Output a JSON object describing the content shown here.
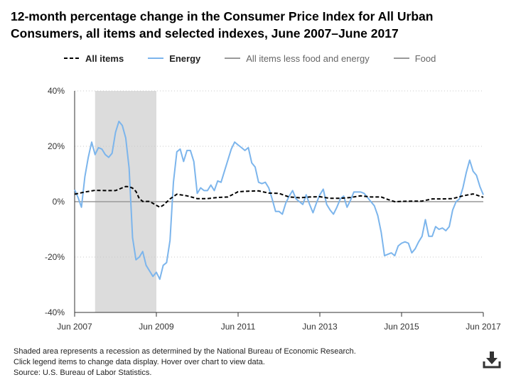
{
  "title": "12-month percentage change in the Consumer Price Index for All Urban Consumers, all items and selected indexes, June 2007–June 2017",
  "legend": {
    "all_items": "All items",
    "energy": "Energy",
    "core": "All items less food and energy",
    "food": "Food"
  },
  "notes": {
    "line1": "Shaded area represents a recession as determined by the National Bureau of Economic Research.",
    "line2": "Click legend items to change data display. Hover over chart to view data.",
    "line3": "Source: U.S. Bureau of Labor Statistics."
  },
  "icons": {
    "download": "download-icon"
  },
  "colors": {
    "energy": "#7cb5ec",
    "all_items": "#000000",
    "recession": "#dcdcdc",
    "zero_line": "#999999",
    "legend_gray": "#999999"
  },
  "chart_data": {
    "type": "line",
    "x_start": "2007-06",
    "x_end": "2017-06",
    "xlim": [
      0,
      120
    ],
    "ylim": [
      -40,
      40
    ],
    "y_ticks": [
      {
        "value": 40,
        "label": "40%"
      },
      {
        "value": 20,
        "label": "20%"
      },
      {
        "value": 0,
        "label": "0%"
      },
      {
        "value": -20,
        "label": "-20%"
      },
      {
        "value": -40,
        "label": "-40%"
      }
    ],
    "x_ticks": [
      {
        "value": 0,
        "label": "Jun 2007"
      },
      {
        "value": 24,
        "label": "Jun 2009"
      },
      {
        "value": 48,
        "label": "Jun 2011"
      },
      {
        "value": 72,
        "label": "Jun 2013"
      },
      {
        "value": 96,
        "label": "Jun 2015"
      },
      {
        "value": 120,
        "label": "Jun 2017"
      }
    ],
    "recession": [
      6,
      24
    ],
    "series": [
      {
        "name": "All items",
        "style": "dashed",
        "points": [
          [
            0,
            2.7
          ],
          [
            3,
            3.5
          ],
          [
            6,
            4.1
          ],
          [
            9,
            4.0
          ],
          [
            12,
            4.0
          ],
          [
            14,
            5.0
          ],
          [
            15,
            5.5
          ],
          [
            16,
            5.4
          ],
          [
            17,
            4.9
          ],
          [
            18,
            3.7
          ],
          [
            19,
            1.1
          ],
          [
            20,
            0.1
          ],
          [
            22,
            0.1
          ],
          [
            24,
            -1.3
          ],
          [
            25,
            -2.0
          ],
          [
            26,
            -1.3
          ],
          [
            28,
            1.0
          ],
          [
            30,
            2.7
          ],
          [
            33,
            2.1
          ],
          [
            36,
            1.1
          ],
          [
            39,
            1.1
          ],
          [
            42,
            1.5
          ],
          [
            45,
            1.7
          ],
          [
            48,
            3.6
          ],
          [
            51,
            3.8
          ],
          [
            54,
            3.9
          ],
          [
            57,
            3.1
          ],
          [
            60,
            3.0
          ],
          [
            63,
            1.7
          ],
          [
            66,
            1.4
          ],
          [
            69,
            1.7
          ],
          [
            72,
            1.8
          ],
          [
            75,
            1.2
          ],
          [
            78,
            1.2
          ],
          [
            81,
            1.5
          ],
          [
            84,
            2.1
          ],
          [
            87,
            1.7
          ],
          [
            90,
            1.7
          ],
          [
            92,
            0.8
          ],
          [
            94,
            0
          ],
          [
            96,
            0.1
          ],
          [
            99,
            0.2
          ],
          [
            102,
            0.2
          ],
          [
            105,
            1.0
          ],
          [
            108,
            1.0
          ],
          [
            111,
            1.1
          ],
          [
            114,
            2.1
          ],
          [
            117,
            2.8
          ],
          [
            120,
            1.6
          ]
        ]
      },
      {
        "name": "Energy",
        "style": "solid",
        "points": [
          [
            0,
            4.3
          ],
          [
            1,
            1.5
          ],
          [
            2,
            -2.0
          ],
          [
            3,
            9.0
          ],
          [
            4,
            16.0
          ],
          [
            5,
            21.5
          ],
          [
            6,
            17.0
          ],
          [
            7,
            19.5
          ],
          [
            8,
            19.0
          ],
          [
            9,
            17.0
          ],
          [
            10,
            16.0
          ],
          [
            11,
            17.5
          ],
          [
            12,
            25.0
          ],
          [
            13,
            29.0
          ],
          [
            14,
            27.5
          ],
          [
            15,
            23.0
          ],
          [
            16,
            12.0
          ],
          [
            17,
            -13.0
          ],
          [
            18,
            -21.0
          ],
          [
            19,
            -20.0
          ],
          [
            20,
            -18.0
          ],
          [
            21,
            -23.0
          ],
          [
            22,
            -25.0
          ],
          [
            23,
            -27.0
          ],
          [
            24,
            -25.5
          ],
          [
            25,
            -28.0
          ],
          [
            26,
            -23.0
          ],
          [
            27,
            -22.0
          ],
          [
            28,
            -14.0
          ],
          [
            29,
            7.0
          ],
          [
            30,
            18.0
          ],
          [
            31,
            19.0
          ],
          [
            32,
            14.5
          ],
          [
            33,
            18.5
          ],
          [
            34,
            18.5
          ],
          [
            35,
            14.5
          ],
          [
            36,
            3.0
          ],
          [
            37,
            5.0
          ],
          [
            38,
            4.0
          ],
          [
            39,
            4.0
          ],
          [
            40,
            6.0
          ],
          [
            41,
            4.0
          ],
          [
            42,
            7.5
          ],
          [
            43,
            7.0
          ],
          [
            44,
            11.0
          ],
          [
            45,
            15.0
          ],
          [
            46,
            19.0
          ],
          [
            47,
            21.5
          ],
          [
            48,
            20.5
          ],
          [
            49,
            19.5
          ],
          [
            50,
            18.5
          ],
          [
            51,
            19.5
          ],
          [
            52,
            14.0
          ],
          [
            53,
            12.5
          ],
          [
            54,
            7.0
          ],
          [
            55,
            6.5
          ],
          [
            56,
            7.0
          ],
          [
            57,
            5.0
          ],
          [
            58,
            1.0
          ],
          [
            59,
            -3.5
          ],
          [
            60,
            -3.5
          ],
          [
            61,
            -4.5
          ],
          [
            62,
            -0.5
          ],
          [
            63,
            2.0
          ],
          [
            64,
            4.0
          ],
          [
            65,
            1.0
          ],
          [
            66,
            0
          ],
          [
            67,
            -1.0
          ],
          [
            68,
            2.5
          ],
          [
            69,
            -1.0
          ],
          [
            70,
            -4.0
          ],
          [
            71,
            -0.5
          ],
          [
            72,
            2.5
          ],
          [
            73,
            4.5
          ],
          [
            74,
            -1.0
          ],
          [
            75,
            -3.0
          ],
          [
            76,
            -4.5
          ],
          [
            77,
            -2.0
          ],
          [
            78,
            1.0
          ],
          [
            79,
            2.0
          ],
          [
            80,
            -2.0
          ],
          [
            81,
            0.5
          ],
          [
            82,
            3.5
          ],
          [
            83,
            3.5
          ],
          [
            84,
            3.5
          ],
          [
            85,
            3.0
          ],
          [
            86,
            1.5
          ],
          [
            87,
            0
          ],
          [
            88,
            -1.5
          ],
          [
            89,
            -5.0
          ],
          [
            90,
            -11.0
          ],
          [
            91,
            -19.5
          ],
          [
            92,
            -19.0
          ],
          [
            93,
            -18.5
          ],
          [
            94,
            -19.5
          ],
          [
            95,
            -16.0
          ],
          [
            96,
            -15.0
          ],
          [
            97,
            -14.5
          ],
          [
            98,
            -15.0
          ],
          [
            99,
            -18.5
          ],
          [
            100,
            -17.0
          ],
          [
            101,
            -14.5
          ],
          [
            102,
            -12.5
          ],
          [
            103,
            -6.5
          ],
          [
            104,
            -12.5
          ],
          [
            105,
            -12.5
          ],
          [
            106,
            -9.0
          ],
          [
            107,
            -10.0
          ],
          [
            108,
            -9.5
          ],
          [
            109,
            -10.5
          ],
          [
            110,
            -9.0
          ],
          [
            111,
            -3.0
          ],
          [
            112,
            0
          ],
          [
            113,
            1.0
          ],
          [
            114,
            5.0
          ],
          [
            115,
            10.5
          ],
          [
            116,
            15.0
          ],
          [
            117,
            11.0
          ],
          [
            118,
            9.5
          ],
          [
            119,
            5.5
          ],
          [
            120,
            2.5
          ]
        ]
      },
      {
        "name": "All items less food and energy",
        "style": "solid",
        "points": []
      },
      {
        "name": "Food",
        "style": "solid",
        "points": []
      }
    ]
  }
}
